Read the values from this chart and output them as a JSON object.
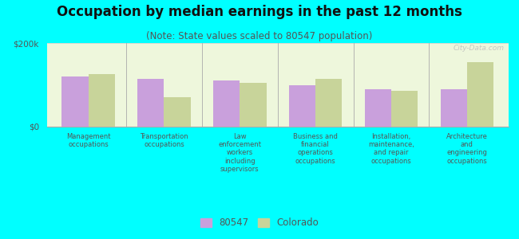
{
  "title": "Occupation by median earnings in the past 12 months",
  "subtitle": "(Note: State values scaled to 80547 population)",
  "categories": [
    "Management\noccupations",
    "Transportation\noccupations",
    "Law\nenforcement\nworkers\nincluding\nsupervisors",
    "Business and\nfinancial\noperations\noccupations",
    "Installation,\nmaintenance,\nand repair\noccupations",
    "Architecture\nand\nengineering\noccupations"
  ],
  "values_80547": [
    120000,
    115000,
    110000,
    100000,
    90000,
    90000
  ],
  "values_colorado": [
    125000,
    70000,
    105000,
    115000,
    85000,
    155000
  ],
  "color_80547": "#c9a0dc",
  "color_colorado": "#c8d49a",
  "background_color": "#00ffff",
  "ylim": [
    0,
    200000
  ],
  "ytick_labels": [
    "$0",
    "$200k"
  ],
  "legend_label_80547": "80547",
  "legend_label_colorado": "Colorado",
  "watermark": "City-Data.com",
  "bar_width": 0.35,
  "title_fontsize": 12,
  "subtitle_fontsize": 8.5,
  "tick_fontsize": 7.5,
  "legend_fontsize": 8.5
}
